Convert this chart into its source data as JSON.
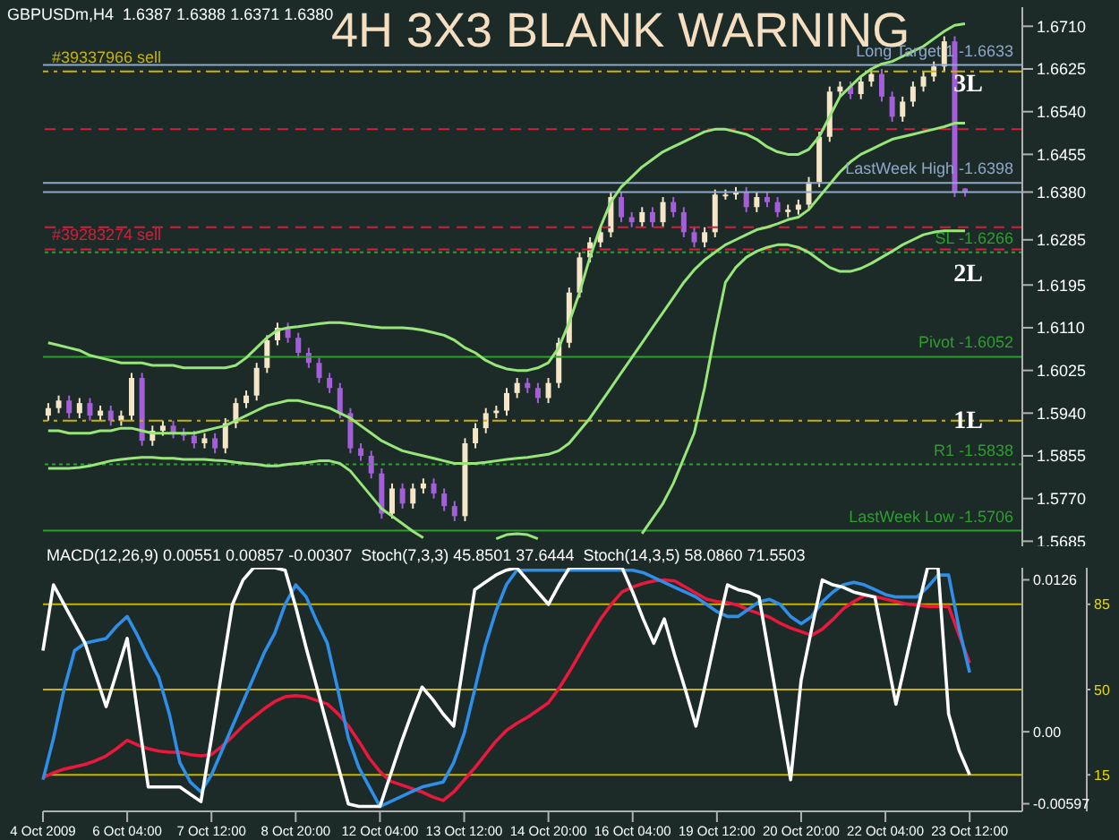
{
  "chart_data": [
    {
      "type": "candlestick",
      "title": "4H 3X3 BLANK WARNING",
      "subtitle": "GBPUSDm,H4  1.6387 1.6388 1.6371 1.6380",
      "tick_labels": "y",
      "categories": [
        null,
        null,
        null,
        null,
        null,
        null,
        null,
        null,
        null,
        null,
        null,
        null,
        null,
        null,
        null,
        null,
        null,
        null,
        null,
        null,
        null,
        null,
        null,
        null,
        null,
        null,
        null,
        null,
        null,
        null,
        null,
        null,
        null,
        null,
        null,
        null,
        null,
        null,
        null,
        null,
        null,
        null,
        null,
        null,
        null,
        null,
        null,
        null,
        null,
        null,
        null,
        null,
        null,
        null,
        null,
        null,
        null,
        null,
        null,
        null,
        null,
        null,
        null,
        null,
        null,
        null,
        null,
        null,
        null,
        null,
        null,
        null,
        null,
        null,
        null,
        null,
        null,
        null,
        null,
        null,
        null,
        null,
        null,
        null,
        null,
        null,
        null,
        null,
        null,
        null,
        null,
        null,
        null,
        null
      ],
      "ohlc": [
        [
          1.5935,
          1.596,
          1.5925,
          1.595
        ],
        [
          1.595,
          1.5975,
          1.594,
          1.5965
        ],
        [
          1.5965,
          1.5975,
          1.593,
          1.594
        ],
        [
          1.594,
          1.597,
          1.593,
          1.596
        ],
        [
          1.596,
          1.597,
          1.5925,
          1.5935
        ],
        [
          1.5935,
          1.5955,
          1.5925,
          1.5945
        ],
        [
          1.5945,
          1.5955,
          1.5915,
          1.5925
        ],
        [
          1.5925,
          1.5945,
          1.5915,
          1.5935
        ],
        [
          1.5935,
          1.602,
          1.5925,
          1.601
        ],
        [
          1.601,
          1.602,
          1.5875,
          1.5885
        ],
        [
          1.5885,
          1.5915,
          1.5875,
          1.5905
        ],
        [
          1.5905,
          1.5925,
          1.5895,
          1.5915
        ],
        [
          1.5915,
          1.5925,
          1.589,
          1.59
        ],
        [
          1.59,
          1.591,
          1.5885,
          1.5895
        ],
        [
          1.5895,
          1.5905,
          1.587,
          1.588
        ],
        [
          1.588,
          1.59,
          1.587,
          1.589
        ],
        [
          1.589,
          1.59,
          1.586,
          1.587
        ],
        [
          1.587,
          1.593,
          1.586,
          1.592
        ],
        [
          1.592,
          1.597,
          1.591,
          1.596
        ],
        [
          1.596,
          1.5985,
          1.595,
          1.5975
        ],
        [
          1.5975,
          1.604,
          1.5965,
          1.603
        ],
        [
          1.603,
          1.6095,
          1.602,
          1.6085
        ],
        [
          1.6085,
          1.612,
          1.6075,
          1.611
        ],
        [
          1.611,
          1.612,
          1.608,
          1.609
        ],
        [
          1.609,
          1.61,
          1.605,
          1.606
        ],
        [
          1.606,
          1.607,
          1.603,
          1.604
        ],
        [
          1.604,
          1.605,
          1.6,
          1.601
        ],
        [
          1.601,
          1.602,
          1.598,
          1.599
        ],
        [
          1.599,
          1.6,
          1.593,
          1.594
        ],
        [
          1.594,
          1.595,
          1.586,
          1.587
        ],
        [
          1.587,
          1.588,
          1.5845,
          1.5855
        ],
        [
          1.5855,
          1.5865,
          1.581,
          1.582
        ],
        [
          1.582,
          1.583,
          1.573,
          1.574
        ],
        [
          1.574,
          1.58,
          1.573,
          1.579
        ],
        [
          1.579,
          1.58,
          1.575,
          1.576
        ],
        [
          1.576,
          1.58,
          1.575,
          1.579
        ],
        [
          1.579,
          1.581,
          1.578,
          1.58
        ],
        [
          1.58,
          1.581,
          1.577,
          1.578
        ],
        [
          1.578,
          1.579,
          1.5745,
          1.5755
        ],
        [
          1.5755,
          1.5765,
          1.5725,
          1.5735
        ],
        [
          1.5735,
          1.589,
          1.5725,
          1.588
        ],
        [
          1.588,
          1.592,
          1.587,
          1.591
        ],
        [
          1.591,
          1.595,
          1.59,
          1.594
        ],
        [
          1.594,
          1.5955,
          1.593,
          1.5945
        ],
        [
          1.5945,
          1.599,
          1.5935,
          1.598
        ],
        [
          1.598,
          1.601,
          1.597,
          1.6
        ],
        [
          1.6,
          1.601,
          1.598,
          1.599
        ],
        [
          1.599,
          1.6,
          1.596,
          1.597
        ],
        [
          1.597,
          1.601,
          1.596,
          1.6
        ],
        [
          1.6,
          1.609,
          1.599,
          1.608
        ],
        [
          1.608,
          1.619,
          1.607,
          1.618
        ],
        [
          1.618,
          1.626,
          1.617,
          1.625
        ],
        [
          1.625,
          1.629,
          1.624,
          1.628
        ],
        [
          1.628,
          1.631,
          1.627,
          1.63
        ],
        [
          1.63,
          1.638,
          1.629,
          1.637
        ],
        [
          1.637,
          1.638,
          1.632,
          1.633
        ],
        [
          1.633,
          1.634,
          1.631,
          1.632
        ],
        [
          1.632,
          1.635,
          1.631,
          1.634
        ],
        [
          1.634,
          1.635,
          1.631,
          1.632
        ],
        [
          1.632,
          1.637,
          1.631,
          1.636
        ],
        [
          1.636,
          1.637,
          1.633,
          1.634
        ],
        [
          1.634,
          1.635,
          1.629,
          1.63
        ],
        [
          1.63,
          1.631,
          1.627,
          1.628
        ],
        [
          1.628,
          1.631,
          1.627,
          1.63
        ],
        [
          1.63,
          1.6385,
          1.629,
          1.6375
        ],
        [
          1.6375,
          1.6385,
          1.6365,
          1.6375
        ],
        [
          1.6375,
          1.639,
          1.6365,
          1.638
        ],
        [
          1.638,
          1.639,
          1.634,
          1.635
        ],
        [
          1.635,
          1.638,
          1.634,
          1.637
        ],
        [
          1.637,
          1.638,
          1.635,
          1.636
        ],
        [
          1.636,
          1.637,
          1.633,
          1.634
        ],
        [
          1.634,
          1.6355,
          1.633,
          1.6345
        ],
        [
          1.6345,
          1.6365,
          1.6335,
          1.6355
        ],
        [
          1.6355,
          1.641,
          1.6345,
          1.64
        ],
        [
          1.64,
          1.65,
          1.639,
          1.649
        ],
        [
          1.649,
          1.659,
          1.648,
          1.658
        ],
        [
          1.658,
          1.66,
          1.657,
          1.659
        ],
        [
          1.659,
          1.66,
          1.6565,
          1.6575
        ],
        [
          1.6575,
          1.661,
          1.6565,
          1.66
        ],
        [
          1.66,
          1.6625,
          1.659,
          1.6615
        ],
        [
          1.6615,
          1.6625,
          1.656,
          1.657
        ],
        [
          1.657,
          1.658,
          1.652,
          1.653
        ],
        [
          1.653,
          1.657,
          1.652,
          1.656
        ],
        [
          1.656,
          1.66,
          1.655,
          1.659
        ],
        [
          1.659,
          1.662,
          1.658,
          1.661
        ],
        [
          1.661,
          1.664,
          1.66,
          1.663
        ],
        [
          1.663,
          1.669,
          1.662,
          1.668
        ],
        [
          1.668,
          1.669,
          1.637,
          1.638
        ],
        [
          1.6387,
          1.6388,
          1.6371,
          1.638
        ],
        null,
        null,
        null,
        null,
        null
      ],
      "colors": [
        "#f5e6c8",
        "#f5e6c8",
        "#a35fd8",
        "#f5e6c8",
        "#a35fd8",
        "#f5e6c8",
        "#a35fd8",
        "#f5e6c8",
        "#f5e6c8",
        "#a35fd8",
        "#f5e6c8",
        "#f5e6c8",
        "#a35fd8",
        "#a35fd8",
        "#a35fd8",
        "#f5e6c8",
        "#a35fd8",
        "#f5e6c8",
        "#f5e6c8",
        "#f5e6c8",
        "#f5e6c8",
        "#f5e6c8",
        "#f5e6c8",
        "#a35fd8",
        "#a35fd8",
        "#a35fd8",
        "#a35fd8",
        "#a35fd8",
        "#a35fd8",
        "#a35fd8",
        "#a35fd8",
        "#a35fd8",
        "#a35fd8",
        "#f5e6c8",
        "#a35fd8",
        "#f5e6c8",
        "#f5e6c8",
        "#a35fd8",
        "#a35fd8",
        "#a35fd8",
        "#f5e6c8",
        "#f5e6c8",
        "#f5e6c8",
        "#f5e6c8",
        "#f5e6c8",
        "#f5e6c8",
        "#a35fd8",
        "#a35fd8",
        "#f5e6c8",
        "#f5e6c8",
        "#f5e6c8",
        "#f5e6c8",
        "#f5e6c8",
        "#f5e6c8",
        "#f5e6c8",
        "#a35fd8",
        "#a35fd8",
        "#f5e6c8",
        "#a35fd8",
        "#f5e6c8",
        "#a35fd8",
        "#a35fd8",
        "#a35fd8",
        "#f5e6c8",
        "#f5e6c8",
        "#f5e6c8",
        "#f5e6c8",
        "#a35fd8",
        "#f5e6c8",
        "#a35fd8",
        "#a35fd8",
        "#f5e6c8",
        "#f5e6c8",
        "#f5e6c8",
        "#f5e6c8",
        "#f5e6c8",
        "#f5e6c8",
        "#a35fd8",
        "#f5e6c8",
        "#f5e6c8",
        "#a35fd8",
        "#a35fd8",
        "#f5e6c8",
        "#f5e6c8",
        "#f5e6c8",
        "#f5e6c8",
        "#f5e6c8",
        "#a35fd8",
        "#a35fd8",
        null,
        null,
        null,
        null,
        null
      ],
      "series": [
        {
          "type": "line",
          "color": "#98e67a",
          "values": [
            1.608,
            1.6075,
            1.607,
            1.6065,
            1.6055,
            1.605,
            1.6045,
            1.604,
            1.604,
            1.604,
            1.6035,
            1.6035,
            1.6035,
            1.603,
            1.603,
            1.603,
            1.603,
            1.603,
            1.6035,
            1.605,
            1.607,
            1.609,
            1.6105,
            1.611,
            1.6112,
            1.6115,
            1.6118,
            1.612,
            1.612,
            1.6118,
            1.6115,
            1.6112,
            1.611,
            1.611,
            1.611,
            1.6108,
            1.6105,
            1.61,
            1.6095,
            1.6085,
            1.607,
            1.606,
            1.6045,
            1.6035,
            1.6028,
            1.6025,
            1.6025,
            1.603,
            1.604,
            1.607,
            1.612,
            1.618,
            1.625,
            1.631,
            1.636,
            1.639,
            1.641,
            1.643,
            1.6445,
            1.646,
            1.647,
            1.648,
            1.649,
            1.65,
            1.6505,
            1.6505,
            1.65,
            1.6495,
            1.6485,
            1.647,
            1.646,
            1.6455,
            1.6455,
            1.6465,
            1.649,
            1.653,
            1.657,
            1.659,
            1.661,
            1.6625,
            1.6635,
            1.664,
            1.665,
            1.666,
            1.667,
            1.6685,
            1.67,
            1.6712,
            1.6715,
            null,
            null,
            null,
            null,
            null
          ]
        },
        {
          "type": "line",
          "color": "#98e67a",
          "values": [
            1.5905,
            1.5905,
            1.59,
            1.59,
            1.59,
            1.5905,
            1.5905,
            1.591,
            1.591,
            1.5905,
            1.59,
            1.59,
            1.59,
            1.59,
            1.59,
            1.5905,
            1.591,
            1.5915,
            1.5925,
            1.5935,
            1.5945,
            1.5955,
            1.596,
            1.5965,
            1.5965,
            1.596,
            1.5955,
            1.595,
            1.594,
            1.593,
            1.5915,
            1.59,
            1.5885,
            1.5875,
            1.5865,
            1.586,
            1.5855,
            1.585,
            1.5845,
            1.584,
            1.584,
            1.584,
            1.5842,
            1.5845,
            1.5848,
            1.585,
            1.5852,
            1.5855,
            1.5858,
            1.5865,
            1.588,
            1.5905,
            1.593,
            1.596,
            1.599,
            1.602,
            1.605,
            1.608,
            1.611,
            1.614,
            1.617,
            1.62,
            1.6225,
            1.6245,
            1.626,
            1.6275,
            1.6285,
            1.6295,
            1.6305,
            1.631,
            1.6317,
            1.6325,
            1.633,
            1.6345,
            1.637,
            1.6395,
            1.642,
            1.644,
            1.6455,
            1.6465,
            1.6475,
            1.6485,
            1.649,
            1.6495,
            1.65,
            1.6505,
            1.651,
            1.6517,
            1.6517,
            null,
            null,
            null,
            null,
            null
          ]
        },
        {
          "type": "line",
          "color": "#98e67a",
          "values": [
            1.583,
            1.583,
            1.583,
            1.5832,
            1.5835,
            1.584,
            1.5845,
            1.5848,
            1.585,
            1.5852,
            1.5852,
            1.585,
            1.585,
            1.5848,
            1.5848,
            1.5848,
            1.5846,
            1.5845,
            1.5842,
            1.584,
            1.5838,
            1.5835,
            1.5835,
            1.5838,
            1.584,
            1.5842,
            1.5845,
            1.5845,
            1.584,
            1.5825,
            1.58,
            1.5775,
            1.575,
            1.5735,
            1.572,
            1.5705,
            1.5692,
            null,
            null,
            null,
            null,
            null,
            null,
            1.569,
            1.5698,
            1.57,
            1.5698,
            1.569,
            null,
            null,
            null,
            null,
            null,
            null,
            null,
            null,
            null,
            1.57,
            1.573,
            1.576,
            1.58,
            1.585,
            1.59,
            1.599,
            1.61,
            1.62,
            1.623,
            1.625,
            1.6262,
            1.627,
            1.6275,
            1.6275,
            1.627,
            1.626,
            1.6245,
            1.623,
            1.6222,
            1.6222,
            1.6228,
            1.6238,
            1.625,
            1.6262,
            1.6275,
            1.6285,
            1.6295,
            1.63,
            1.6303,
            1.6303,
            1.6303,
            null,
            null,
            null,
            null,
            null
          ]
        }
      ],
      "ylim": [
        1.5675,
        1.6748
      ],
      "yticks": [
        {
          "value": 1.671,
          "label": "1.6710"
        },
        {
          "value": 1.6625,
          "label": "1.6625"
        },
        {
          "value": 1.654,
          "label": "1.6540"
        },
        {
          "value": 1.6455,
          "label": "1.6455"
        },
        {
          "value": 1.638,
          "label": "1.6380"
        },
        {
          "value": 1.6285,
          "label": "1.6285"
        },
        {
          "value": 1.6195,
          "label": "1.6195"
        },
        {
          "value": 1.611,
          "label": "1.6110"
        },
        {
          "value": 1.6025,
          "label": "1.6025"
        },
        {
          "value": 1.594,
          "label": "1.5940"
        },
        {
          "value": 1.5855,
          "label": "1.5855"
        },
        {
          "value": 1.577,
          "label": "1.5770"
        },
        {
          "value": 1.5685,
          "label": "1.5685"
        }
      ],
      "ref_lines": [
        {
          "axis": "y",
          "value": 1.6633,
          "label": "Long Target 1 -1.6633",
          "color": "#8fa8c8",
          "line_style": "solid"
        },
        {
          "axis": "y",
          "value": 1.662,
          "label": "#39337966 sell",
          "color": "#c8b400",
          "line_style": "dashdot"
        },
        {
          "axis": "y",
          "value": 1.6505,
          "color": "#d0203c",
          "line_style": "dashed"
        },
        {
          "axis": "y",
          "value": 1.6398,
          "label": "LastWeek High -1.6398",
          "color": "#8fa8c8",
          "line_style": "solid"
        },
        {
          "axis": "y",
          "value": 1.638,
          "color": "#8fa8c8",
          "line_style": "solid"
        },
        {
          "axis": "y",
          "value": 1.631,
          "color": "#d0203c",
          "line_style": "dashed"
        },
        {
          "axis": "y",
          "value": 1.6266,
          "label": "#39283274 sell",
          "color": "#d0203c",
          "line_style": "dashed"
        },
        {
          "axis": "y",
          "value": 1.626,
          "label": "SL -1.6266",
          "color": "#2e9e2e",
          "line_style": "dotted"
        },
        {
          "axis": "y",
          "value": 1.6052,
          "label": "Pivot -1.6052",
          "color": "#2e9e2e",
          "line_style": "solid"
        },
        {
          "axis": "y",
          "value": 1.5925,
          "color": "#c8b400",
          "line_style": "dashdot"
        },
        {
          "axis": "y",
          "value": 1.5838,
          "label": "R1 -1.5838",
          "color": "#2e9e2e",
          "line_style": "dotted"
        },
        {
          "axis": "y",
          "value": 1.5706,
          "label": "LastWeek Low -1.5706",
          "color": "#2e9e2e",
          "line_style": "solid"
        }
      ],
      "annotations": [
        "3L",
        "2L",
        "1L"
      ]
    },
    {
      "type": "line",
      "title": "MACD(12,26,9) 0.00551 0.00857 -0.00307  Stoch(7,3,3) 45.8501 37.6444  Stoch(14,3,5) 58.0860 71.5503",
      "categories": [
        "4 Oct 2009",
        null,
        null,
        null,
        null,
        null,
        null,
        null,
        "6 Oct 04:00",
        null,
        null,
        null,
        null,
        null,
        null,
        null,
        "7 Oct 12:00",
        null,
        null,
        null,
        null,
        null,
        null,
        null,
        "8 Oct 20:00",
        null,
        null,
        null,
        null,
        null,
        null,
        null,
        "12 Oct 04:00",
        null,
        null,
        null,
        null,
        null,
        null,
        null,
        "13 Oct 12:00",
        null,
        null,
        null,
        null,
        null,
        null,
        null,
        "14 Oct 20:00",
        null,
        null,
        null,
        null,
        null,
        null,
        null,
        "16 Oct 04:00",
        null,
        null,
        null,
        null,
        null,
        null,
        null,
        "19 Oct 12:00",
        null,
        null,
        null,
        null,
        null,
        null,
        null,
        "20 Oct 20:00",
        null,
        null,
        null,
        null,
        null,
        null,
        null,
        "22 Oct 04:00",
        null,
        null,
        null,
        null,
        null,
        null,
        null,
        "23 Oct 12:00",
        null,
        null,
        null,
        null,
        null
      ],
      "series": [
        {
          "color": "#e8193c",
          "values": [
            -0.0038,
            -0.0034,
            -0.0031,
            -0.0029,
            -0.0027,
            -0.0024,
            -0.002,
            -0.0014,
            -0.0007,
            -0.0011,
            -0.0014,
            -0.0016,
            -0.0017,
            -0.0017,
            -0.0019,
            -0.002,
            -0.0019,
            -0.0012,
            -0.0004,
            0.0005,
            0.0012,
            0.0019,
            0.0025,
            0.0029,
            0.003,
            0.0029,
            0.0026,
            0.0023,
            0.0015,
            0.0005,
            -0.0008,
            -0.0022,
            -0.0033,
            -0.0041,
            -0.0044,
            -0.0047,
            -0.005,
            -0.0054,
            -0.0057,
            -0.005,
            -0.004,
            -0.003,
            -0.0019,
            -0.0008,
            0.0001,
            0.0007,
            0.0012,
            0.0018,
            0.0024,
            0.0036,
            0.005,
            0.0065,
            0.008,
            0.0094,
            0.0106,
            0.0116,
            0.012,
            0.0123,
            0.0125,
            0.0126,
            0.0125,
            0.012,
            0.0115,
            0.011,
            0.0108,
            0.0107,
            0.0105,
            0.0101,
            0.0098,
            0.0095,
            0.009,
            0.0086,
            0.0083,
            0.008,
            0.0085,
            0.0093,
            0.0102,
            0.0108,
            0.0113,
            0.0112,
            0.011,
            0.0108,
            0.0106,
            0.0105,
            0.0104,
            0.0104,
            0.0104,
            0.008,
            0.0057,
            null,
            null,
            null,
            null,
            null
          ]
        },
        {
          "color": "#2f8fe8",
          "axis": "y2",
          "values": [
            13,
            30,
            50,
            66,
            69,
            70,
            71,
            76,
            80,
            72,
            63,
            55,
            40,
            20,
            12,
            8,
            15,
            25,
            35,
            45,
            55,
            65,
            73,
            85,
            93,
            88,
            78,
            69,
            50,
            30,
            18,
            10,
            2,
            4,
            6,
            8,
            10,
            11,
            12,
            20,
            32,
            50,
            68,
            82,
            93,
            99,
            99,
            99,
            99,
            99,
            99,
            99,
            99,
            99,
            99,
            99,
            99,
            98,
            96,
            94,
            92,
            90,
            88,
            85,
            82,
            80,
            80,
            83,
            86,
            87,
            85,
            80,
            77,
            80,
            86,
            90,
            93,
            94,
            93,
            91,
            89,
            88,
            88,
            88,
            92,
            97,
            97,
            75,
            57,
            null,
            null,
            null,
            null,
            null
          ]
        },
        {
          "color": "#ffffff",
          "axis": "y2",
          "values": [
            66,
            93,
            85,
            77,
            69,
            56,
            43,
            57,
            71,
            40,
            10,
            10,
            10,
            10,
            7,
            4,
            30,
            58,
            85,
            95,
            100,
            100,
            100,
            99,
            84,
            67,
            51,
            35,
            19,
            3,
            2,
            2,
            2,
            15,
            28,
            40,
            51,
            46,
            40,
            35,
            63,
            91,
            94,
            97,
            99,
            100,
            95,
            90,
            85,
            93,
            100,
            100,
            100,
            100,
            100,
            100,
            90,
            79,
            69,
            79,
            64,
            50,
            35,
            54,
            74,
            93,
            91,
            90,
            88,
            63,
            38,
            13,
            54,
            75,
            95,
            93,
            92,
            90,
            89,
            88,
            66,
            44,
            63,
            82,
            100,
            100,
            40,
            25,
            15,
            null,
            null,
            null,
            null,
            null
          ]
        }
      ],
      "ylim": [
        -0.0066,
        0.0136
      ],
      "yticks": [
        0.0126,
        {
          "value": 0,
          "label": "0.00"
        },
        -0.00597
      ],
      "y2lim": [
        0,
        100
      ],
      "y2ticks": [
        85,
        50,
        15
      ],
      "ref_lines": [
        {
          "axis": "y2",
          "value": 85,
          "color": "#c8b400",
          "line_style": "solid"
        },
        {
          "axis": "y2",
          "value": 50,
          "color": "#c8b400",
          "line_style": "solid"
        },
        {
          "axis": "y2",
          "value": 15,
          "color": "#c8b400",
          "line_style": "solid"
        }
      ]
    }
  ]
}
